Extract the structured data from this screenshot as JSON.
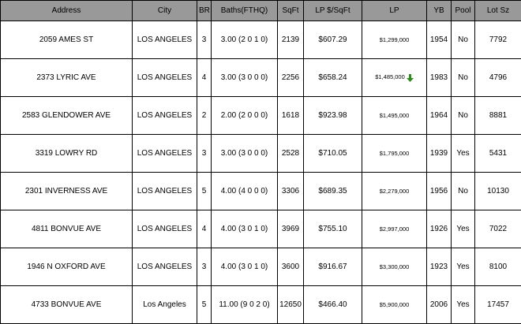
{
  "colors": {
    "header_bg": "#999999",
    "border": "#000000",
    "down_arrow": "#2e8b1e"
  },
  "columns": [
    "Address",
    "City",
    "BR",
    "Baths(FTHQ)",
    "SqFt",
    "LP $/SqFt",
    "LP",
    "YB",
    "Pool",
    "Lot Sz"
  ],
  "rows": [
    {
      "address": "2059   AMES ST",
      "city": "LOS ANGELES",
      "br": "3",
      "baths": "3.00 (2 0 1 0)",
      "sqft": "2139",
      "lp_sqft": "$607.29",
      "lp": "$1,299,000",
      "yb": "1954",
      "pool": "No",
      "lot": "7792",
      "price_drop": false
    },
    {
      "address": "2373   LYRIC AVE",
      "city": "LOS ANGELES",
      "br": "4",
      "baths": "3.00 (3 0 0 0)",
      "sqft": "2256",
      "lp_sqft": "$658.24",
      "lp": "$1,485,000",
      "yb": "1983",
      "pool": "No",
      "lot": "4796",
      "price_drop": true,
      "price_drop_icon": "down-arrow-icon"
    },
    {
      "address": "2583   GLENDOWER AVE",
      "city": "LOS ANGELES",
      "br": "2",
      "baths": "2.00 (2 0 0 0)",
      "sqft": "1618",
      "lp_sqft": "$923.98",
      "lp": "$1,495,000",
      "yb": "1964",
      "pool": "No",
      "lot": "8881",
      "price_drop": false
    },
    {
      "address": "3319   LOWRY RD",
      "city": "LOS ANGELES",
      "br": "3",
      "baths": "3.00 (3 0 0 0)",
      "sqft": "2528",
      "lp_sqft": "$710.05",
      "lp": "$1,795,000",
      "yb": "1939",
      "pool": "Yes",
      "lot": "5431",
      "price_drop": false
    },
    {
      "address": "2301   INVERNESS AVE",
      "city": "LOS ANGELES",
      "br": "5",
      "baths": "4.00 (4 0 0 0)",
      "sqft": "3306",
      "lp_sqft": "$689.35",
      "lp": "$2,279,000",
      "yb": "1956",
      "pool": "No",
      "lot": "10130",
      "price_drop": false
    },
    {
      "address": "4811   BONVUE AVE",
      "city": "LOS ANGELES",
      "br": "4",
      "baths": "4.00 (3 0 1 0)",
      "sqft": "3969",
      "lp_sqft": "$755.10",
      "lp": "$2,997,000",
      "yb": "1926",
      "pool": "Yes",
      "lot": "7022",
      "price_drop": false
    },
    {
      "address": "1946   N OXFORD AVE",
      "city": "LOS ANGELES",
      "br": "3",
      "baths": "4.00 (3 0 1 0)",
      "sqft": "3600",
      "lp_sqft": "$916.67",
      "lp": "$3,300,000",
      "yb": "1923",
      "pool": "Yes",
      "lot": "8100",
      "price_drop": false
    },
    {
      "address": "4733   BONVUE AVE",
      "city": "Los Angeles",
      "br": "5",
      "baths": "11.00 (9 0 2 0)",
      "sqft": "12650",
      "lp_sqft": "$466.40",
      "lp": "$5,900,000",
      "yb": "2006",
      "pool": "Yes",
      "lot": "17457",
      "price_drop": false
    }
  ]
}
